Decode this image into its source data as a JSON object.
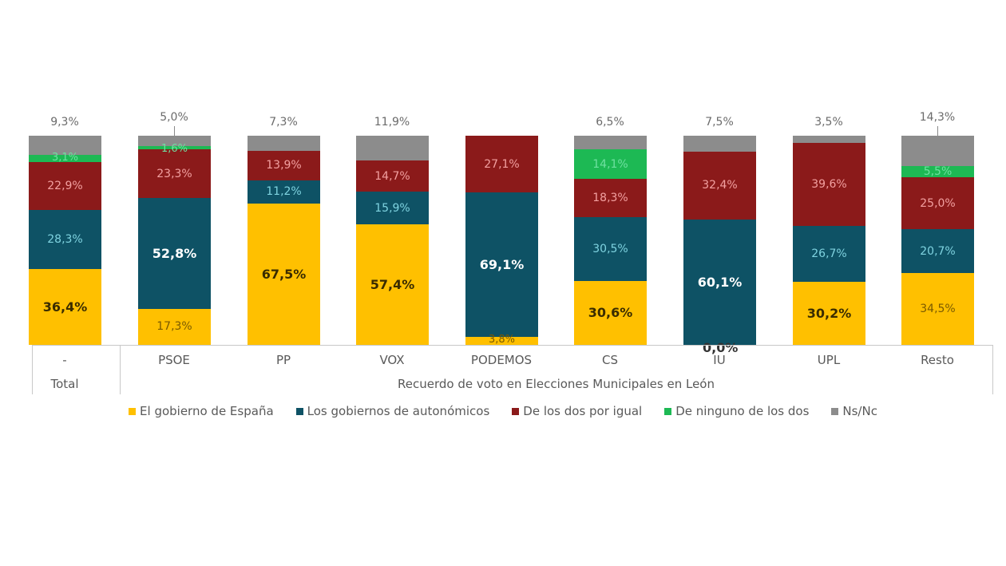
{
  "chart_data": {
    "type": "bar",
    "stacked": true,
    "normalized": true,
    "title": "",
    "xlabel": "Recuerdo de voto en Elecciones Municipales en León",
    "ylabel": "",
    "ylim": [
      0,
      100
    ],
    "grid": false,
    "legend_position": "bottom",
    "categories": [
      "Total",
      "PSOE",
      "PP",
      "VOX",
      "PODEMOS",
      "CS",
      "IU",
      "UPL",
      "Resto"
    ],
    "category_groups": [
      {
        "label": "Total",
        "sublabel": "-",
        "categories": [
          "Total"
        ]
      },
      {
        "label": "Recuerdo de voto en Elecciones Municipales en León",
        "categories": [
          "PSOE",
          "PP",
          "VOX",
          "PODEMOS",
          "CS",
          "IU",
          "UPL",
          "Resto"
        ]
      }
    ],
    "series": [
      {
        "name": "El gobierno de España",
        "color": "#FFC000",
        "values": [
          36.4,
          17.3,
          67.5,
          57.4,
          3.8,
          30.6,
          0.0,
          30.2,
          34.5
        ]
      },
      {
        "name": "Los gobiernos de autonómicos",
        "color": "#0E5265",
        "values": [
          28.3,
          52.8,
          11.2,
          15.9,
          69.1,
          30.5,
          60.1,
          26.7,
          20.7
        ]
      },
      {
        "name": "De los dos por igual",
        "color": "#8B1A1A",
        "values": [
          22.9,
          23.3,
          13.9,
          14.7,
          27.1,
          18.3,
          32.4,
          39.6,
          25.0
        ]
      },
      {
        "name": "De ninguno de los dos",
        "color": "#1DB954",
        "values": [
          3.1,
          1.6,
          0.0,
          0.0,
          0.0,
          14.1,
          0.0,
          0.0,
          5.5
        ]
      },
      {
        "name": "Ns/Nc",
        "color": "#8C8C8C",
        "values": [
          9.3,
          5.0,
          7.3,
          11.9,
          0.0,
          6.5,
          7.5,
          3.5,
          14.3
        ]
      }
    ],
    "labels": {
      "Total": [
        "36,4%",
        "28,3%",
        "22,9%",
        "3,1%",
        "9,3%"
      ],
      "PSOE": [
        "17,3%",
        "52,8%",
        "23,3%",
        "1,6%",
        "5,0%"
      ],
      "PP": [
        "67,5%",
        "11,2%",
        "13,9%",
        "",
        "7,3%"
      ],
      "VOX": [
        "57,4%",
        "15,9%",
        "14,7%",
        "",
        "11,9%"
      ],
      "PODEMOS": [
        "3,8%",
        "69,1%",
        "27,1%",
        "",
        ""
      ],
      "CS": [
        "30,6%",
        "30,5%",
        "18,3%",
        "14,1%",
        "6,5%"
      ],
      "IU": [
        "0,0%",
        "60,1%",
        "32,4%",
        "",
        "7,5%"
      ],
      "UPL": [
        "30,2%",
        "26,7%",
        "39,6%",
        "",
        "3,5%"
      ],
      "Resto": [
        "34,5%",
        "20,7%",
        "25,0%",
        "5,5%",
        "14,3%"
      ]
    }
  },
  "axis": {
    "total_sublabel": "-",
    "total_label": "Total",
    "group_label": "Recuerdo de voto en Elecciones Municipales en León",
    "categories": [
      "PSOE",
      "PP",
      "VOX",
      "PODEMOS",
      "CS",
      "IU",
      "UPL",
      "Resto"
    ]
  },
  "legend": [
    {
      "label": "El gobierno de España",
      "color": "#FFC000"
    },
    {
      "label": "Los gobiernos de autonómicos",
      "color": "#0E5265"
    },
    {
      "label": "De los dos por igual",
      "color": "#8B1A1A"
    },
    {
      "label": "De ninguno de los dos",
      "color": "#1DB954"
    },
    {
      "label": "Ns/Nc",
      "color": "#8C8C8C"
    }
  ]
}
